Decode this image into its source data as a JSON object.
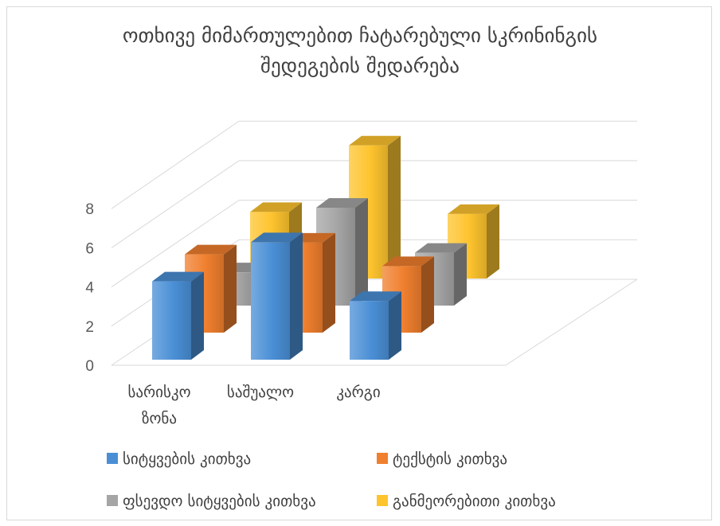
{
  "chart_data": {
    "type": "bar",
    "variant": "3d-column",
    "title_lines": [
      "ოთხივე მიმართულებით ჩატარებული სკრინინგის",
      "შედეგების შედარება"
    ],
    "categories": [
      [
        "სარისკო",
        "ზონა"
      ],
      [
        "საშუალო"
      ],
      [
        "კარგი"
      ]
    ],
    "series": [
      {
        "name": "სიტყვების კითხვა",
        "values": [
          4,
          6,
          3
        ],
        "color": "#4a8fd6"
      },
      {
        "name": "ტექსტის კითხვა",
        "values": [
          4,
          4.6,
          3.4
        ],
        "color": "#f07f2e"
      },
      {
        "name": "ფსევდო სიტყვების კითხვა",
        "values": [
          1.7,
          5,
          2.7
        ],
        "color": "#a5a5a5"
      },
      {
        "name": "განმეორებითი კითხვა",
        "values": [
          3.4,
          6.8,
          3.3
        ],
        "color": "#fec42e"
      }
    ],
    "y_ticks": [
      0,
      2,
      4,
      6,
      8
    ],
    "ylim": [
      0,
      8
    ],
    "grid": true,
    "legend_position": "bottom"
  }
}
